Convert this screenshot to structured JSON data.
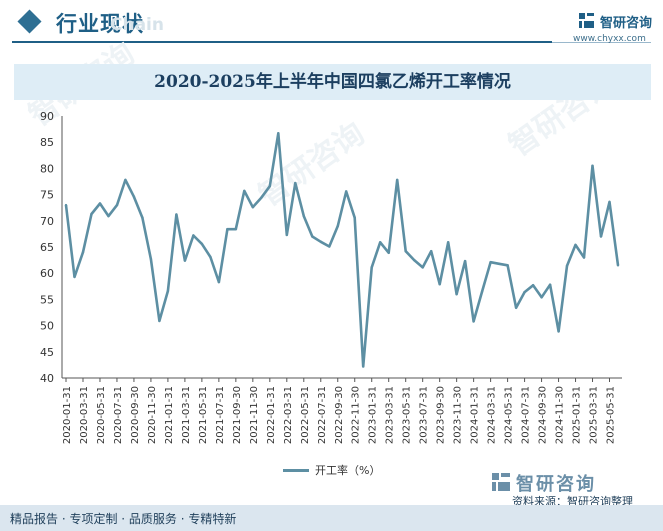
{
  "header": {
    "section_title": "行业现状",
    "watermark_en": "Chain",
    "logo_text": "智研咨询",
    "logo_url": "www.chyxx.com",
    "bg_mark": "智研咨询"
  },
  "colors": {
    "accent": "#1f5f86",
    "line": "#5d8fa3",
    "title_band": "#deedf6",
    "footer_band": "#dbe6ef"
  },
  "chart_data": {
    "type": "line",
    "title": "2020-2025年上半年中国四氯乙烯开工率情况",
    "ylabel": "",
    "xlabel": "",
    "ylim": [
      40,
      90
    ],
    "yticks": [
      40,
      45,
      50,
      55,
      60,
      65,
      70,
      75,
      80,
      85,
      90
    ],
    "tick_labels": [
      "2020-01-31",
      "2020-03-31",
      "2020-05-31",
      "2020-07-31",
      "2020-09-30",
      "2020-11-30",
      "2021-01-31",
      "2021-03-31",
      "2021-05-31",
      "2021-07-31",
      "2021-09-30",
      "2021-11-30",
      "2022-01-31",
      "2022-03-31",
      "2022-05-31",
      "2022-07-31",
      "2022-09-30",
      "2022-11-30",
      "2023-01-31",
      "2023-03-31",
      "2023-05-31",
      "2023-07-31",
      "2023-09-30",
      "2023-11-30",
      "2024-01-31",
      "2024-03-31",
      "2024-05-31",
      "2024-07-31",
      "2024-09-30",
      "2024-11-30",
      "2025-01-31",
      "2025-03-31",
      "2025-05-31"
    ],
    "series": [
      {
        "name": "开工率（%）",
        "values": [
          73.0,
          59.3,
          64.0,
          71.3,
          73.3,
          70.9,
          73.0,
          77.8,
          74.6,
          70.6,
          62.7,
          50.9,
          56.6,
          71.2,
          62.4,
          67.2,
          65.6,
          63.1,
          58.3,
          68.4,
          68.4,
          75.7,
          72.6,
          74.4,
          76.6,
          86.7,
          67.3,
          77.2,
          70.9,
          67.0,
          66.0,
          65.1,
          69.0,
          75.6,
          70.6,
          42.2,
          61.1,
          65.9,
          63.9,
          77.8,
          64.2,
          62.5,
          61.1,
          64.2,
          57.9,
          65.9,
          56.0,
          62.3,
          50.8,
          56.5,
          62.1,
          61.8,
          61.5,
          53.4,
          56.4,
          57.7,
          55.4,
          57.8,
          48.9,
          61.4,
          65.4,
          63.0,
          80.5,
          67.0,
          73.6,
          61.5
        ]
      }
    ],
    "legend": {
      "label": "开工率（%）",
      "position": "bottom"
    }
  },
  "footer": {
    "tags": "精品报告 · 专项定制 · 品质服务 · 专精特新",
    "source": "资料来源：智研咨询整理",
    "logo_text": "智研咨询"
  }
}
